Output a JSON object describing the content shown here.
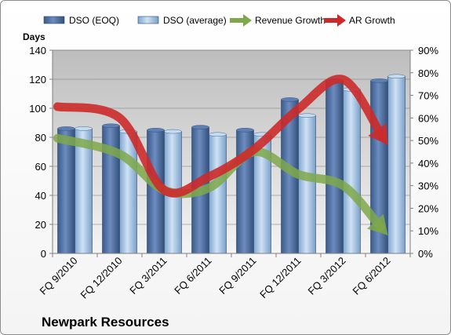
{
  "chart_data": {
    "type": "bar",
    "title": "",
    "footer_label": "Newpark Resources",
    "ylabel_left": "Days",
    "ylabel_right": "",
    "categories": [
      "FQ 9/2010",
      "FQ 12/2010",
      "FQ 3/2011",
      "FQ 6/2011",
      "FQ 9/2011",
      "FQ 12/2011",
      "FQ 3/2012",
      "FQ 6/2012"
    ],
    "ylim_left": [
      0,
      140
    ],
    "yticks_left": [
      0,
      20,
      40,
      60,
      80,
      100,
      120,
      140
    ],
    "ylim_right": [
      0,
      90
    ],
    "yticks_right": [
      "0%",
      "10%",
      "20%",
      "30%",
      "40%",
      "50%",
      "60%",
      "70%",
      "80%",
      "90%"
    ],
    "series": [
      {
        "name": "DSO (EOQ)",
        "type": "bar",
        "axis": "left",
        "color": "#4a6a9a",
        "values": [
          86,
          88,
          85,
          87,
          85,
          106,
          119,
          119
        ]
      },
      {
        "name": "DSO (average)",
        "type": "bar",
        "axis": "left",
        "color": "#a8c8e8",
        "values": [
          86,
          84,
          84,
          82,
          82,
          95,
          113,
          122
        ]
      },
      {
        "name": "Revenue Growth",
        "type": "line-arrow",
        "axis": "right",
        "color": "#7fa84a",
        "values": [
          51,
          44,
          28,
          29,
          45,
          35,
          30,
          8
        ]
      },
      {
        "name": "AR Growth",
        "type": "line-arrow",
        "axis": "right",
        "color": "#cc2a2a",
        "values": [
          65,
          60,
          28,
          34,
          46,
          64,
          77,
          48
        ]
      }
    ],
    "grid": true,
    "legend_position": "top"
  }
}
